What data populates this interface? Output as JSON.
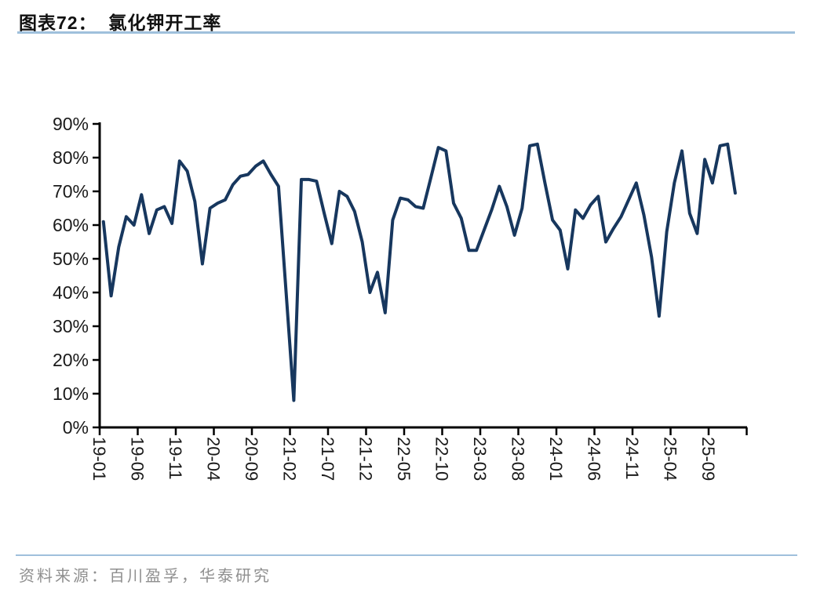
{
  "page": {
    "title": "图表72：  氯化钾开工率",
    "source_label": "资料来源：百川盈孚，华泰研究"
  },
  "colors": {
    "line": "#17375e",
    "rule": "#9fc0dc",
    "axis": "#000000",
    "tick_text": "#1a1a1a",
    "footer_text": "#8f8f8f"
  },
  "chart_data": {
    "type": "line",
    "title": "氯化钾开工率",
    "unit": "%",
    "grid": false,
    "legend": "none",
    "ylim": [
      0,
      90
    ],
    "y_tick_labels": [
      "0%",
      "10%",
      "20%",
      "30%",
      "40%",
      "50%",
      "60%",
      "70%",
      "80%",
      "90%"
    ],
    "x_tick_labels": [
      "19-01",
      "19-06",
      "19-11",
      "20-04",
      "20-09",
      "21-02",
      "21-07",
      "21-12",
      "22-05",
      "22-10",
      "23-03",
      "23-08",
      "24-01",
      "24-06",
      "24-11",
      "25-04",
      "25-09"
    ],
    "x": [
      "19-01",
      "19-02",
      "19-03",
      "19-04",
      "19-05",
      "19-06",
      "19-07",
      "19-08",
      "19-09",
      "19-10",
      "19-11",
      "19-12",
      "20-01",
      "20-02",
      "20-03",
      "20-04",
      "20-05",
      "20-06",
      "20-07",
      "20-08",
      "20-09",
      "20-10",
      "20-11",
      "20-12",
      "21-01",
      "21-02",
      "21-03",
      "21-04",
      "21-05",
      "21-06",
      "21-07",
      "21-08",
      "21-09",
      "21-10",
      "21-11",
      "21-12",
      "22-01",
      "22-02",
      "22-03",
      "22-04",
      "22-05",
      "22-06",
      "22-07",
      "22-08",
      "22-09",
      "22-10",
      "22-11",
      "22-12",
      "23-01",
      "23-02",
      "23-03",
      "23-04",
      "23-05",
      "23-06",
      "23-07",
      "23-08",
      "23-09",
      "23-10",
      "23-11",
      "23-12",
      "24-01",
      "24-02",
      "24-03",
      "24-04",
      "24-05",
      "24-06",
      "24-07",
      "24-08",
      "24-09",
      "24-10",
      "24-11",
      "24-12",
      "25-01",
      "25-02",
      "25-03",
      "25-04",
      "25-05",
      "25-06",
      "25-07",
      "25-08",
      "25-09",
      "25-10",
      "25-11",
      "25-12"
    ],
    "values": [
      61,
      39,
      53.5,
      62.5,
      60,
      69,
      57.5,
      64.5,
      65.5,
      60.5,
      79,
      76,
      67,
      48.5,
      65,
      66.5,
      67.5,
      72,
      74.5,
      75,
      77.5,
      79,
      75,
      71.5,
      40,
      8,
      73.5,
      73.5,
      73,
      63.5,
      54.5,
      70,
      68.5,
      64,
      55,
      40,
      46,
      34,
      61.5,
      68,
      67.5,
      65.5,
      65,
      74,
      83,
      82,
      66.5,
      62,
      52.5,
      52.5,
      58.5,
      64.5,
      71.5,
      65.5,
      57,
      65,
      83.5,
      84,
      72.5,
      61.5,
      58.5,
      47,
      64.5,
      62,
      66,
      68.5,
      55,
      59,
      62.5,
      67.5,
      72.5,
      63,
      50.5,
      33,
      58,
      72.5,
      82,
      63.5,
      57.5,
      79.5,
      72.5,
      83.5,
      84,
      69.5
    ]
  }
}
